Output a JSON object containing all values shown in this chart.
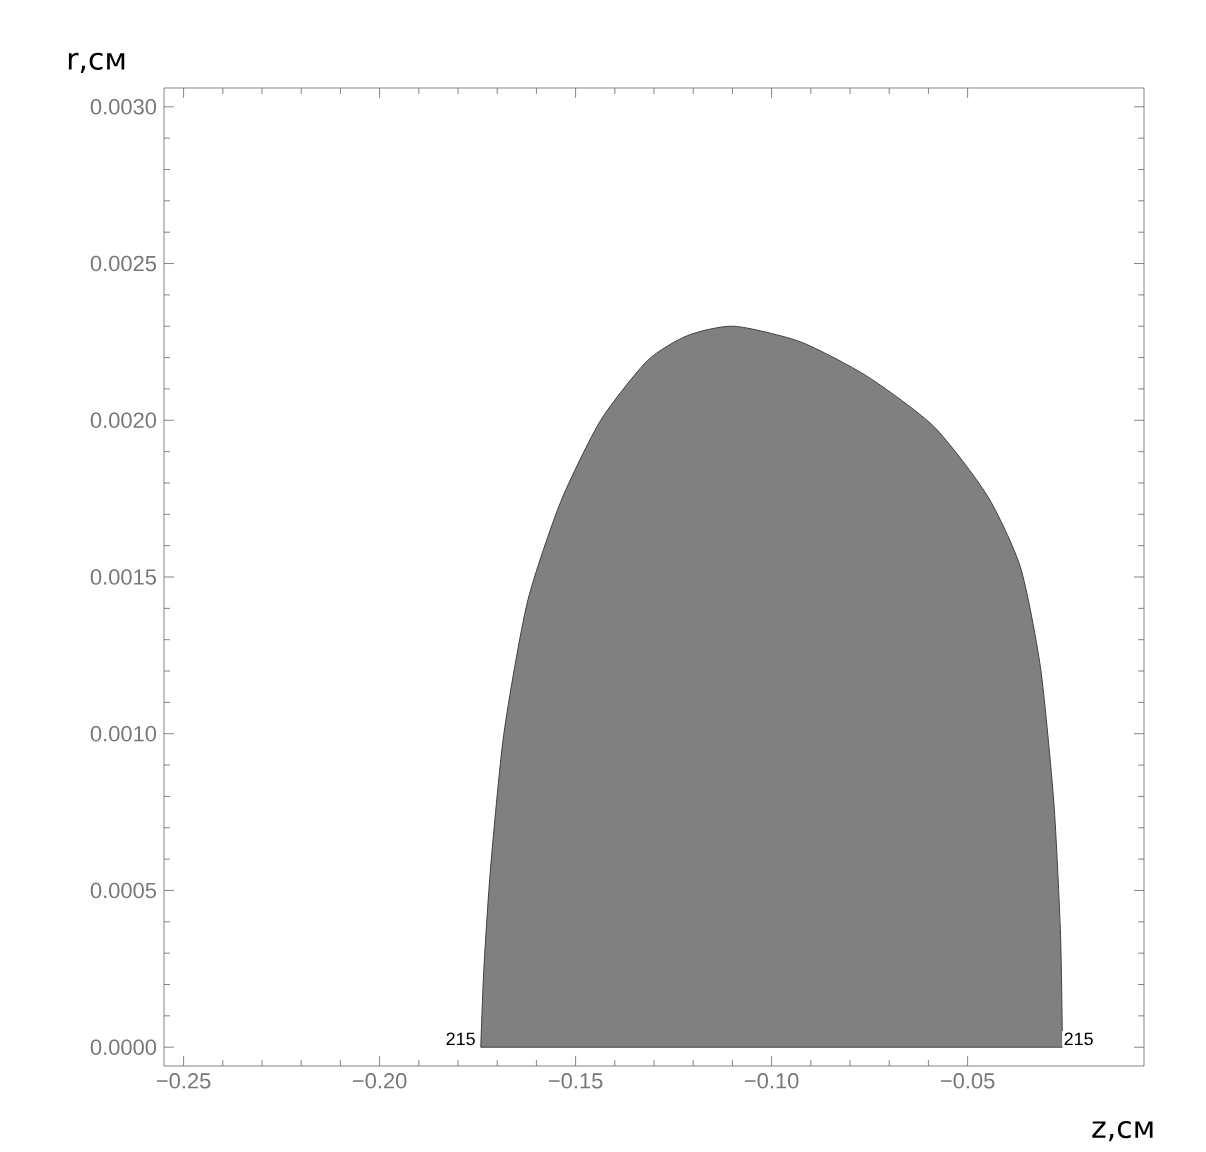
{
  "chart_data": {
    "type": "area",
    "x": [
      -0.1742,
      -0.1734,
      -0.1717,
      -0.1683,
      -0.1623,
      -0.1538,
      -0.1436,
      -0.1317,
      -0.1215,
      -0.1096,
      -0.0926,
      -0.0756,
      -0.0586,
      -0.045,
      -0.0365,
      -0.0314,
      -0.028,
      -0.0263,
      -0.0258
    ],
    "values": [
      0,
      0.00025,
      0.00057,
      0.001,
      0.00142,
      0.00174,
      0.002,
      0.00219,
      0.00227,
      0.0023,
      0.00225,
      0.00214,
      0.00198,
      0.00176,
      0.00153,
      0.00121,
      0.00078,
      0.00036,
      0
    ],
    "color": "#808080",
    "xlabel": "z,см",
    "ylabel": "r,см",
    "xlim": [
      -0.255,
      -0.005
    ],
    "ylim": [
      -6e-05,
      0.00306
    ],
    "xticks": [
      {
        "value": -0.25,
        "label": "−0.25"
      },
      {
        "value": -0.2,
        "label": "−0.20"
      },
      {
        "value": -0.15,
        "label": "−0.15"
      },
      {
        "value": -0.1,
        "label": "−0.10"
      },
      {
        "value": -0.05,
        "label": "−0.05"
      }
    ],
    "yticks": [
      {
        "value": 0,
        "label": "0.0000"
      },
      {
        "value": 0.0005,
        "label": "0.0005"
      },
      {
        "value": 0.001,
        "label": "0.0010"
      },
      {
        "value": 0.0015,
        "label": "0.0015"
      },
      {
        "value": 0.002,
        "label": "0.0020"
      },
      {
        "value": 0.0025,
        "label": "0.0025"
      },
      {
        "value": 0.003,
        "label": "0.0030"
      }
    ],
    "annotations": [
      {
        "text": "215",
        "x": -0.175,
        "y": 0
      },
      {
        "text": "215",
        "x": -0.026,
        "y": 0
      }
    ],
    "grid": false
  }
}
